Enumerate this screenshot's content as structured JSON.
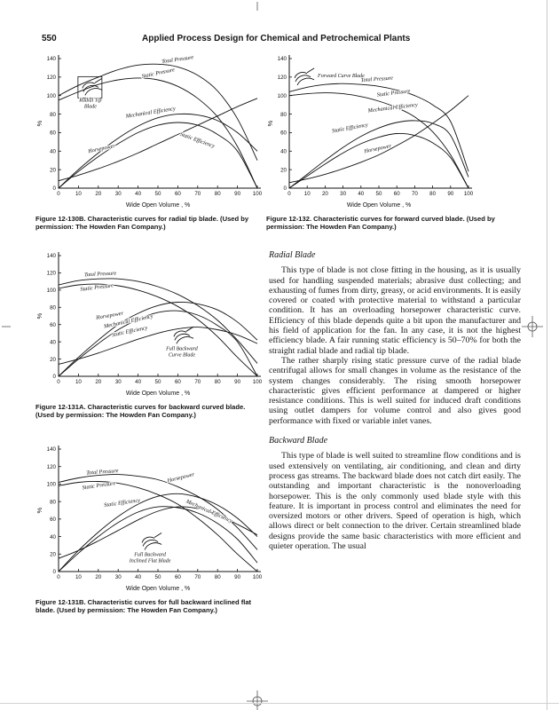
{
  "page": {
    "number": "550",
    "title": "Applied Process Design for Chemical and Petrochemical Plants"
  },
  "figures": {
    "f130b": {
      "caption": "Figure 12-130B. Characteristic curves for radial tip blade. (Used by permission: The Howden Fan Company.)"
    },
    "f132": {
      "caption": "Figure 12-132. Characteristic curves for forward curved blade. (Used by permission: The Howden Fan Company.)"
    },
    "f131a": {
      "caption": "Figure 12-131A. Characteristic curves for backward curved blade. (Used by permission: The Howden Fan Company.)"
    },
    "f131b": {
      "caption": "Figure 12-131B. Characteristic curves for full backward inclined flat blade. (Used by permission: The Howden Fan Company.)"
    }
  },
  "sections": {
    "radial": {
      "heading": "Radial Blade",
      "para1": "This type of blade is not close fitting in the housing, as it is usually used for handling suspended materials; abrasive dust collecting; and exhausting of fumes from dirty, greasy, or acid environments. It is easily covered or coated with protective material to withstand a particular condition. It has an overloading horsepower characteristic curve. Efficiency of this blade depends quite a bit upon the manufacturer and his field of application for the fan. In any case, it is not the highest efficiency blade. A fair running static efficiency is 50–70% for both the straight radial blade and radial tip blade.",
      "para2": "The rather sharply rising static pressure curve of the radial blade centrifugal allows for small changes in volume as the resistance of the system changes considerably. The rising smooth horsepower characteristic gives efficient performance at dampered or higher resistance conditions. This is well suited for induced draft conditions using outlet dampers for volume control and also gives good performance with fixed or variable inlet vanes."
    },
    "backward": {
      "heading": "Backward Blade",
      "para1": "This type of blade is well suited to streamline flow conditions and is used extensively on ventilating, air conditioning, and clean and dirty process gas streams. The backward blade does not catch dirt easily. The outstanding and important characteristic is the nonoverloading horsepower. This is the only commonly used blade style with this feature. It is important in process control and eliminates the need for oversized motors or other drivers. Speed of operation is high, which allows direct or belt connection to the driver. Certain streamlined blade designs provide the same basic characteristics with more efficient and quieter operation. The usual"
    }
  },
  "chart_data": [
    {
      "type": "line",
      "figure": "12-130B",
      "title": "",
      "xlabel": "Wide Open Volume , %",
      "ylabel": "%",
      "xlim": [
        0,
        100
      ],
      "ylim": [
        0,
        140
      ],
      "xticks": [
        0,
        10,
        20,
        30,
        40,
        50,
        60,
        70,
        80,
        90,
        100
      ],
      "yticks": [
        0,
        20,
        40,
        60,
        80,
        100,
        120,
        140
      ],
      "x": [
        0,
        10,
        20,
        30,
        40,
        50,
        60,
        70,
        80,
        90,
        100
      ],
      "series": [
        {
          "name": "Total Pressure",
          "y": [
            100,
            111,
            120,
            128,
            133,
            134,
            131,
            122,
            105,
            75,
            30
          ]
        },
        {
          "name": "Static Pressure",
          "y": [
            95,
            104,
            112,
            117,
            119,
            117,
            110,
            97,
            77,
            45,
            0
          ]
        },
        {
          "name": "Mechanical Efficiency",
          "y": [
            0,
            20,
            38,
            54,
            67,
            76,
            80,
            79,
            73,
            60,
            40
          ]
        },
        {
          "name": "Static Efficiency",
          "y": [
            0,
            18,
            34,
            48,
            60,
            68,
            71,
            68,
            58,
            40,
            0
          ]
        },
        {
          "name": "Horsepower",
          "y": [
            8,
            14,
            21,
            29,
            38,
            48,
            58,
            68,
            78,
            88,
            97
          ]
        }
      ],
      "annotations": [
        {
          "text": "Total Pressure",
          "x": 52,
          "y": 135,
          "r": -8
        },
        {
          "text": "Static Pressure",
          "x": 42,
          "y": 119,
          "r": -12
        },
        {
          "text": "Mechanical Efficiency",
          "x": 34,
          "y": 76,
          "r": -9
        },
        {
          "text": "Static Efficiency",
          "x": 61,
          "y": 57,
          "r": 20
        },
        {
          "text": "Horsepower",
          "x": 15,
          "y": 38,
          "r": -12
        }
      ],
      "blade": {
        "lines": [
          "Radial Tip",
          "Blade"
        ],
        "x": 12,
        "y": 108,
        "boxed": true
      }
    },
    {
      "type": "line",
      "figure": "12-132",
      "title": "",
      "xlabel": "Wide Open Volume , %",
      "ylabel": "%",
      "xlim": [
        0,
        100
      ],
      "ylim": [
        0,
        140
      ],
      "xticks": [
        0,
        10,
        20,
        30,
        40,
        50,
        60,
        70,
        80,
        90,
        100
      ],
      "yticks": [
        0,
        20,
        40,
        60,
        80,
        100,
        120,
        140
      ],
      "x": [
        0,
        10,
        20,
        30,
        40,
        50,
        60,
        70,
        80,
        90,
        100
      ],
      "series": [
        {
          "name": "Total Pressure",
          "y": [
            104,
            109,
            112,
            113,
            112,
            110,
            106,
            100,
            90,
            72,
            18
          ]
        },
        {
          "name": "Static Pressure",
          "y": [
            100,
            102,
            103,
            102,
            99,
            94,
            87,
            77,
            61,
            36,
            0
          ]
        },
        {
          "name": "Mechanical Efficiency",
          "y": [
            0,
            15,
            30,
            44,
            56,
            65,
            71,
            73,
            70,
            57,
            12
          ]
        },
        {
          "name": "Static Efficiency",
          "y": [
            0,
            13,
            26,
            38,
            48,
            55,
            59,
            57,
            49,
            33,
            0
          ]
        },
        {
          "name": "Horsepower",
          "y": [
            6,
            10,
            15,
            21,
            28,
            36,
            46,
            57,
            70,
            84,
            100
          ]
        }
      ],
      "annotations": [
        {
          "text": "Total Pressure",
          "x": 40,
          "y": 115,
          "r": -4
        },
        {
          "text": "Static Pressure",
          "x": 49,
          "y": 99,
          "r": -7
        },
        {
          "text": "Mechanical Efficiency",
          "x": 44,
          "y": 82,
          "r": -7
        },
        {
          "text": "Static Efficiency",
          "x": 24,
          "y": 60,
          "r": -10
        },
        {
          "text": "Horsepower",
          "x": 42,
          "y": 38,
          "r": -12
        }
      ],
      "blade": {
        "lines": [
          "Forward Curve Blade"
        ],
        "x": 3,
        "y": 119,
        "side": true
      }
    },
    {
      "type": "line",
      "figure": "12-131A",
      "title": "",
      "xlabel": "Wide Open Volume , %",
      "ylabel": "%",
      "xlim": [
        0,
        100
      ],
      "ylim": [
        0,
        140
      ],
      "xticks": [
        0,
        10,
        20,
        30,
        40,
        50,
        60,
        70,
        80,
        90,
        100
      ],
      "yticks": [
        0,
        20,
        40,
        60,
        80,
        100,
        120,
        140
      ],
      "x": [
        0,
        10,
        20,
        30,
        40,
        50,
        60,
        70,
        80,
        90,
        100
      ],
      "series": [
        {
          "name": "Total Pressure",
          "y": [
            106,
            111,
            113,
            113,
            110,
            104,
            95,
            82,
            65,
            42,
            15
          ]
        },
        {
          "name": "Static Pressure",
          "y": [
            102,
            106,
            107,
            105,
            100,
            92,
            81,
            66,
            46,
            22,
            0
          ]
        },
        {
          "name": "Mechanical Efficiency",
          "y": [
            0,
            22,
            42,
            60,
            73,
            82,
            86,
            84,
            77,
            63,
            42
          ]
        },
        {
          "name": "Static Efficiency",
          "y": [
            0,
            20,
            38,
            54,
            66,
            74,
            76,
            71,
            59,
            40,
            0
          ]
        },
        {
          "name": "Horsepower",
          "y": [
            14,
            20,
            27,
            35,
            43,
            50,
            55,
            57,
            54,
            48,
            38
          ]
        }
      ],
      "annotations": [
        {
          "text": "Total Pressure",
          "x": 13,
          "y": 116,
          "r": -3
        },
        {
          "text": "Static Pressure",
          "x": 11,
          "y": 99,
          "r": -7
        },
        {
          "text": "Horsepower",
          "x": 19,
          "y": 66,
          "r": -10
        },
        {
          "text": "Mechanical Efficiency",
          "x": 23,
          "y": 56,
          "r": -12
        },
        {
          "text": "Static Efficiency",
          "x": 27,
          "y": 46,
          "r": -12
        }
      ],
      "blade": {
        "lines": [
          "Full Backward",
          "Curve Blade"
        ],
        "x": 58,
        "y": 46
      }
    },
    {
      "type": "line",
      "figure": "12-131B",
      "title": "",
      "xlabel": "Wide Open Volume , %",
      "ylabel": "%",
      "xlim": [
        0,
        100
      ],
      "ylim": [
        0,
        140
      ],
      "xticks": [
        0,
        10,
        20,
        30,
        40,
        50,
        60,
        70,
        80,
        90,
        100
      ],
      "yticks": [
        0,
        20,
        40,
        60,
        80,
        100,
        120,
        140
      ],
      "x": [
        0,
        10,
        20,
        30,
        40,
        50,
        60,
        70,
        80,
        90,
        100
      ],
      "series": [
        {
          "name": "Total Pressure",
          "y": [
            102,
            107,
            110,
            111,
            109,
            105,
            97,
            86,
            71,
            50,
            25
          ]
        },
        {
          "name": "Static Pressure",
          "y": [
            98,
            102,
            103,
            101,
            96,
            88,
            77,
            61,
            42,
            20,
            0
          ]
        },
        {
          "name": "Mechanical Efficiency",
          "y": [
            0,
            24,
            45,
            63,
            77,
            86,
            89,
            85,
            76,
            61,
            40
          ]
        },
        {
          "name": "Static Efficiency",
          "y": [
            0,
            21,
            40,
            56,
            68,
            74,
            73,
            67,
            55,
            37,
            10
          ]
        },
        {
          "name": "Horsepower",
          "y": [
            15,
            24,
            35,
            47,
            59,
            69,
            74,
            72,
            65,
            54,
            42
          ]
        }
      ],
      "annotations": [
        {
          "text": "Total Pressure",
          "x": 14,
          "y": 111,
          "r": -4
        },
        {
          "text": "Horsepower",
          "x": 55,
          "y": 102,
          "r": -14
        },
        {
          "text": "Static Pressure",
          "x": 12,
          "y": 94,
          "r": -8
        },
        {
          "text": "Mechanical Efficiency",
          "x": 64,
          "y": 79,
          "r": 24
        },
        {
          "text": "Static Efficiency",
          "x": 23,
          "y": 74,
          "r": -8
        }
      ],
      "blade": {
        "lines": [
          "Full Backward",
          "Inclined Flat Blade"
        ],
        "x": 42,
        "y": 33
      }
    }
  ]
}
